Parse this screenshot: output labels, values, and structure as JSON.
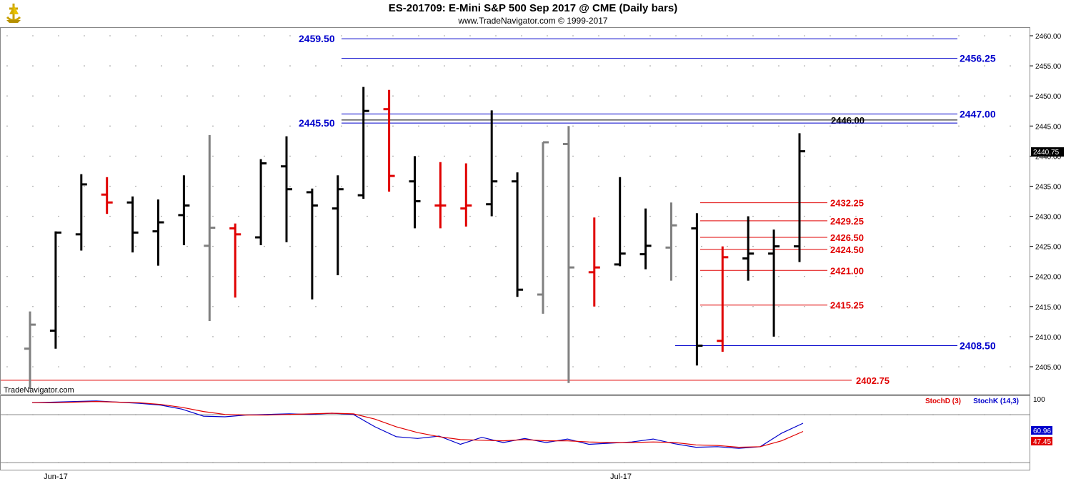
{
  "title": "ES-201709:  E-Mini S&P 500 Sep 2017 @ CME  (Daily bars)",
  "subtitle": "www.TradeNavigator.com © 1999-2017",
  "watermark": "TradeNavigator.com",
  "logo_icon": "gold-ship-logo-icon",
  "colors": {
    "up": "#000000",
    "down": "#e00000",
    "neutral": "#808080",
    "blue_level": "#0000cc",
    "red_level": "#e00000",
    "stoch_d": "#e00000",
    "stoch_k": "#0000cc"
  },
  "chart_data": [
    {
      "type": "ohlc",
      "name": "price",
      "ylim": [
        2401.5,
        2462
      ],
      "y_ticks": [
        "2405.00",
        "2410.00",
        "2415.00",
        "2420.00",
        "2425.00",
        "2430.00",
        "2435.00",
        "2440.00",
        "2445.00",
        "2450.00",
        "2455.00",
        "2460.00"
      ],
      "x_labels": [
        {
          "label": "Jun-17",
          "index": 1
        },
        {
          "label": "Jul-17",
          "index": 23
        }
      ],
      "last_price": "2440.75",
      "bars": [
        {
          "o": 2408.0,
          "h": 2414.2,
          "l": 2401.3,
          "c": 2412.0,
          "color": "gray"
        },
        {
          "o": 2411.0,
          "h": 2427.5,
          "l": 2408.0,
          "c": 2427.3,
          "color": "black"
        },
        {
          "o": 2427.0,
          "h": 2437.0,
          "l": 2424.3,
          "c": 2435.3,
          "color": "black"
        },
        {
          "o": 2433.6,
          "h": 2436.5,
          "l": 2430.4,
          "c": 2432.3,
          "color": "red"
        },
        {
          "o": 2432.3,
          "h": 2433.3,
          "l": 2424.0,
          "c": 2427.3,
          "color": "black"
        },
        {
          "o": 2427.5,
          "h": 2432.8,
          "l": 2421.8,
          "c": 2429.0,
          "color": "black"
        },
        {
          "o": 2430.2,
          "h": 2436.8,
          "l": 2425.2,
          "c": 2431.8,
          "color": "black"
        },
        {
          "o": 2425.1,
          "h": 2443.5,
          "l": 2412.6,
          "c": 2428.1,
          "color": "gray"
        },
        {
          "o": 2428.0,
          "h": 2428.8,
          "l": 2416.5,
          "c": 2427.0,
          "color": "red"
        },
        {
          "o": 2426.5,
          "h": 2439.5,
          "l": 2425.2,
          "c": 2438.8,
          "color": "black"
        },
        {
          "o": 2438.3,
          "h": 2443.3,
          "l": 2425.7,
          "c": 2434.5,
          "color": "black"
        },
        {
          "o": 2434.0,
          "h": 2434.6,
          "l": 2416.2,
          "c": 2431.8,
          "color": "black"
        },
        {
          "o": 2431.3,
          "h": 2436.8,
          "l": 2420.2,
          "c": 2434.5,
          "color": "black"
        },
        {
          "o": 2433.5,
          "h": 2451.5,
          "l": 2432.9,
          "c": 2447.5,
          "color": "black"
        },
        {
          "o": 2447.8,
          "h": 2451.0,
          "l": 2434.1,
          "c": 2436.7,
          "color": "red"
        },
        {
          "o": 2435.8,
          "h": 2440.0,
          "l": 2428.0,
          "c": 2432.5,
          "color": "black"
        },
        {
          "o": 2431.8,
          "h": 2439.0,
          "l": 2428.0,
          "c": 2431.8,
          "color": "red"
        },
        {
          "o": 2431.3,
          "h": 2438.8,
          "l": 2428.3,
          "c": 2431.8,
          "color": "red"
        },
        {
          "o": 2432.0,
          "h": 2447.6,
          "l": 2430.0,
          "c": 2435.8,
          "color": "black"
        },
        {
          "o": 2435.8,
          "h": 2437.3,
          "l": 2416.6,
          "c": 2417.8,
          "color": "black"
        },
        {
          "o": 2417.0,
          "h": 2442.3,
          "l": 2413.8,
          "c": 2442.3,
          "color": "gray"
        },
        {
          "o": 2442.0,
          "h": 2445.0,
          "l": 2402.3,
          "c": 2421.5,
          "color": "gray"
        },
        {
          "o": 2420.7,
          "h": 2429.8,
          "l": 2415.0,
          "c": 2421.5,
          "color": "red"
        },
        {
          "o": 2422.0,
          "h": 2436.5,
          "l": 2421.7,
          "c": 2423.8,
          "color": "black"
        },
        {
          "o": 2423.7,
          "h": 2431.3,
          "l": 2421.2,
          "c": 2425.1,
          "color": "black"
        },
        {
          "o": 2424.8,
          "h": 2432.3,
          "l": 2419.3,
          "c": 2428.5,
          "color": "gray"
        },
        {
          "o": 2428.0,
          "h": 2430.5,
          "l": 2405.2,
          "c": 2408.5,
          "color": "black"
        },
        {
          "o": 2409.3,
          "h": 2425.0,
          "l": 2407.5,
          "c": 2423.2,
          "color": "red"
        },
        {
          "o": 2423.0,
          "h": 2430.0,
          "l": 2419.3,
          "c": 2423.8,
          "color": "black"
        },
        {
          "o": 2423.8,
          "h": 2427.8,
          "l": 2410.0,
          "c": 2425.0,
          "color": "black"
        },
        {
          "o": 2425.0,
          "h": 2443.8,
          "l": 2422.4,
          "c": 2440.8,
          "color": "black"
        }
      ],
      "levels": [
        {
          "value": 2459.5,
          "label": "2459.50",
          "color": "blue",
          "label_side": "left"
        },
        {
          "value": 2456.25,
          "label": "2456.25",
          "color": "blue",
          "label_side": "right"
        },
        {
          "value": 2447.0,
          "label": "2447.00",
          "color": "blue",
          "label_side": "right"
        },
        {
          "value": 2446.0,
          "label": "2446.00",
          "color": "black",
          "label_side": "mid"
        },
        {
          "value": 2445.5,
          "label": "2445.50",
          "color": "blue",
          "label_side": "left"
        },
        {
          "value": 2432.25,
          "label": "2432.25",
          "color": "red",
          "label_side": "mid"
        },
        {
          "value": 2429.25,
          "label": "2429.25",
          "color": "red",
          "label_side": "mid"
        },
        {
          "value": 2426.5,
          "label": "2426.50",
          "color": "red",
          "label_side": "mid"
        },
        {
          "value": 2424.5,
          "label": "2424.50",
          "color": "red",
          "label_side": "mid"
        },
        {
          "value": 2421.0,
          "label": "2421.00",
          "color": "red",
          "label_side": "mid"
        },
        {
          "value": 2415.25,
          "label": "2415.25",
          "color": "red",
          "label_side": "mid"
        },
        {
          "value": 2408.5,
          "label": "2408.50",
          "color": "blue",
          "label_side": "right"
        },
        {
          "value": 2402.75,
          "label": "2402.75",
          "color": "red",
          "label_side": "right"
        }
      ]
    },
    {
      "type": "line",
      "name": "stochastic",
      "ylim": [
        0,
        100
      ],
      "y_ticks": [
        "100"
      ],
      "legend": [
        "StochD (3)",
        "StochK (14,3)"
      ],
      "last_values": {
        "StochK": "60.96",
        "StochD": "47.45"
      },
      "series": [
        {
          "name": "StochK",
          "values": [
            96,
            97,
            98,
            99,
            97,
            95,
            92,
            85,
            73,
            72,
            75,
            76,
            77,
            76,
            78,
            76,
            55,
            38,
            35,
            39,
            25,
            37,
            28,
            35,
            28,
            34,
            25,
            27,
            29,
            34,
            26,
            20,
            21,
            18,
            21,
            44,
            61
          ]
        },
        {
          "name": "StochD",
          "values": [
            96,
            96,
            97,
            98,
            97,
            96,
            93,
            88,
            81,
            76,
            75,
            75,
            76,
            77,
            78,
            77,
            68,
            55,
            45,
            38,
            33,
            32,
            31,
            33,
            31,
            31,
            29,
            28,
            28,
            29,
            28,
            24,
            23,
            20,
            21,
            31,
            47
          ]
        }
      ]
    }
  ]
}
